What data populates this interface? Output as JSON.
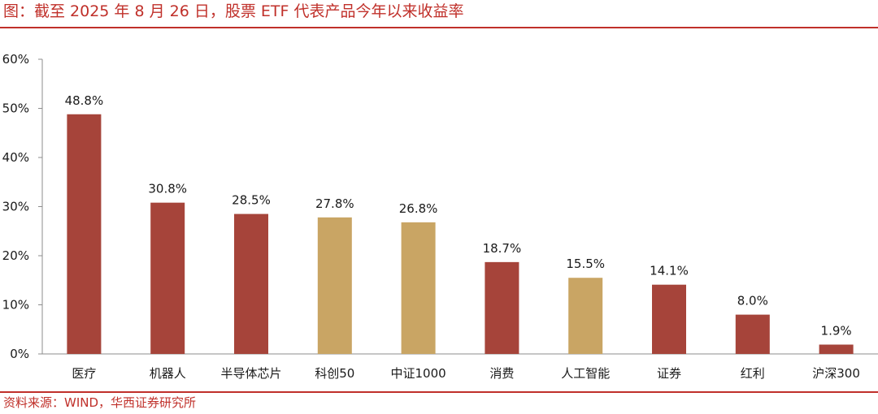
{
  "page": {
    "title": "图：截至 2025 年 8 月 26 日，股票 ETF 代表产品今年以来收益率",
    "source": "资料来源：WIND，华西证券研究所"
  },
  "colors": {
    "accent": "#c0302a",
    "bar_red": "#a6443a",
    "bar_gold": "#c9a564",
    "axis": "#8c8c8c",
    "text": "#1a1a1a"
  },
  "chart_data": {
    "type": "bar",
    "title": "",
    "xlabel": "",
    "ylabel": "",
    "ylim": [
      0,
      60
    ],
    "yticks": [
      0,
      10,
      20,
      30,
      40,
      50,
      60
    ],
    "ytick_labels": [
      "0%",
      "10%",
      "20%",
      "30%",
      "40%",
      "50%",
      "60%"
    ],
    "grid": false,
    "legend": "none",
    "categories": [
      "医疗",
      "机器人",
      "半导体芯片",
      "科创50",
      "中证1000",
      "消费",
      "人工智能",
      "证券",
      "红利",
      "沪深300"
    ],
    "values": [
      48.8,
      30.8,
      28.5,
      27.8,
      26.8,
      18.7,
      15.5,
      14.1,
      8.0,
      1.9
    ],
    "value_labels": [
      "48.8%",
      "30.8%",
      "28.5%",
      "27.8%",
      "26.8%",
      "18.7%",
      "15.5%",
      "14.1%",
      "8.0%",
      "1.9%"
    ],
    "bar_colors": [
      "#a6443a",
      "#a6443a",
      "#a6443a",
      "#c9a564",
      "#c9a564",
      "#a6443a",
      "#c9a564",
      "#a6443a",
      "#a6443a",
      "#a6443a"
    ]
  }
}
